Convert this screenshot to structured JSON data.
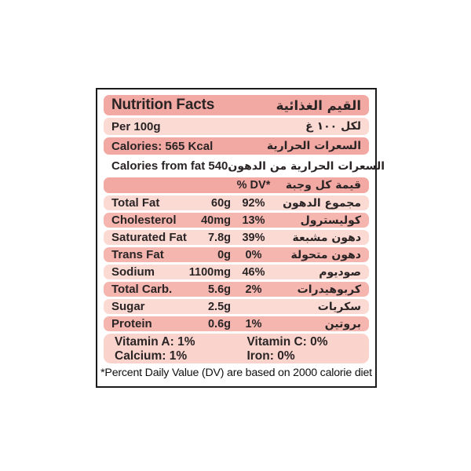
{
  "colors": {
    "salmon": "#f3a9a3",
    "mid_salmon": "#f5b6b0",
    "light_pink": "#fbdad4",
    "vitamin_bg": "#fad3cc",
    "border": "#1b1b1b",
    "text": "#2a2425"
  },
  "label": {
    "title": {
      "en": "Nutrition Facts",
      "ar": "القيم الغذائية"
    },
    "serving": {
      "en": "Per 100g",
      "ar": "لكل ١٠٠ غ"
    },
    "calories": {
      "en": "Calories: 565 Kcal",
      "ar": "السعرات الحرارية"
    },
    "calories_from_fat": {
      "en": "Calories from fat 540",
      "ar": "السعرات الحرارية من الدهون"
    },
    "columns": {
      "dv_header": "% DV*",
      "ar_header": "قيمة كل وجبة"
    },
    "rows": [
      {
        "en": "Total Fat",
        "amount": "60g",
        "dv": "92%",
        "ar": "مجموع الدهون"
      },
      {
        "en": "Cholesterol",
        "amount": "40mg",
        "dv": "13%",
        "ar": "كوليسترول"
      },
      {
        "en": "Saturated Fat",
        "amount": "7.8g",
        "dv": "39%",
        "ar": "دهون مشبعة"
      },
      {
        "en": "Trans Fat",
        "amount": "0g",
        "dv": "0%",
        "ar": "دهون متحولة"
      },
      {
        "en": "Sodium",
        "amount": "1100mg",
        "dv": "46%",
        "ar": "صوديوم"
      },
      {
        "en": "Total Carb.",
        "amount": "5.6g",
        "dv": "2%",
        "ar": "كربوهيدرات"
      },
      {
        "en": "Sugar",
        "amount": "2.5g",
        "dv": "",
        "ar": "سكريات"
      },
      {
        "en": "Protein",
        "amount": "0.6g",
        "dv": "1%",
        "ar": "بروتين"
      }
    ],
    "vitamins": [
      "Vitamin A: 1%",
      "Vitamin C: 0%",
      "Calcium: 1%",
      "Iron: 0%"
    ],
    "footnote": "*Percent Daily Value (DV) are based on 2000 calorie diet"
  }
}
